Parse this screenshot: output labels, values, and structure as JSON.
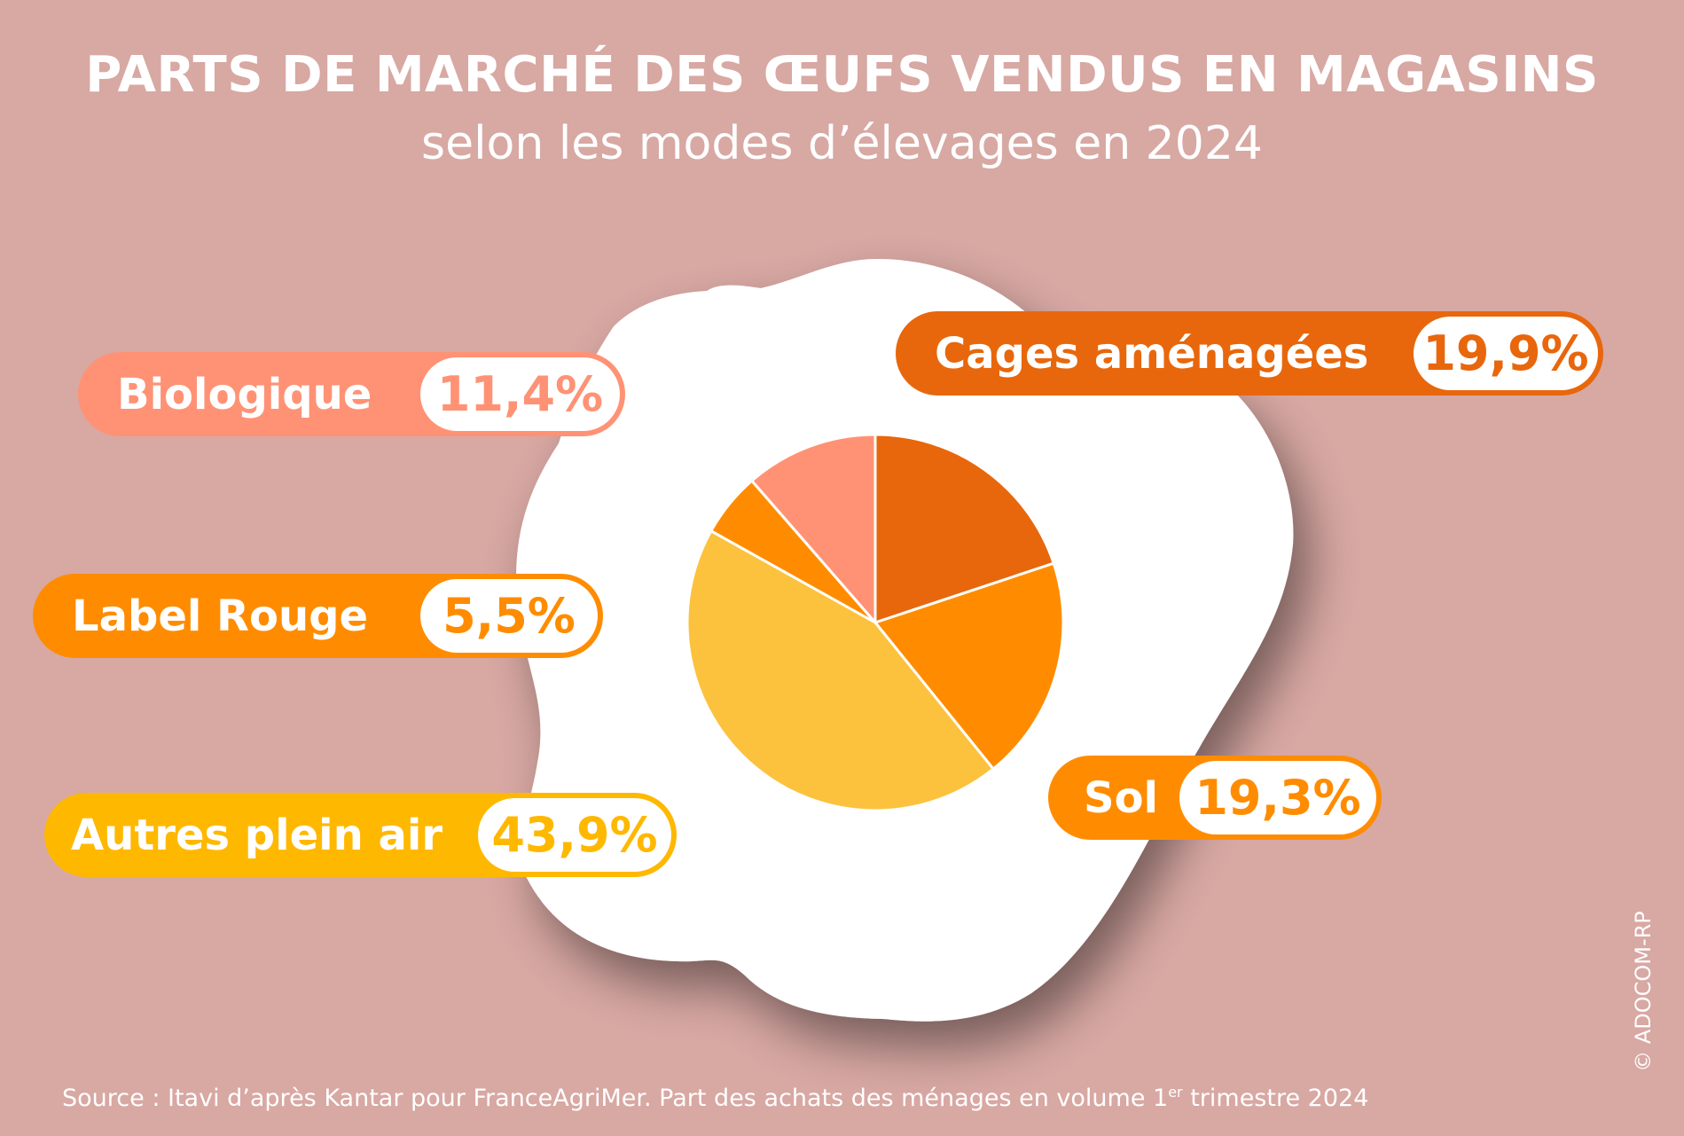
{
  "header": {
    "title": "PARTS DE MARCHÉ DES ŒUFS VENDUS EN MAGASINS",
    "subtitle": "selon les modes d’élevages en 2024"
  },
  "chart_data": {
    "type": "pie",
    "title": "PARTS DE MARCHÉ DES ŒUFS VENDUS EN MAGASINS",
    "subtitle": "selon les modes d’élevages en 2024",
    "unit": "%",
    "slices": [
      {
        "name": "Cages aménagées",
        "value": 19.9,
        "label": "19,9%",
        "color": "#E8670C"
      },
      {
        "name": "Sol",
        "value": 19.3,
        "label": "19,3%",
        "color": "#FF8C00"
      },
      {
        "name": "Autres plein air",
        "value": 43.9,
        "label": "43,9%",
        "color": "#FCC23D"
      },
      {
        "name": "Label Rouge",
        "value": 5.5,
        "label": "5,5%",
        "color": "#FF8C00"
      },
      {
        "name": "Biologique",
        "value": 11.4,
        "label": "11,4%",
        "color": "#FF9275"
      }
    ],
    "legend_placement": "around"
  },
  "labels": {
    "biologique": {
      "name": "Biologique",
      "value": "11,4%",
      "color": "#FF9275",
      "text_color": "#FF9275"
    },
    "cages": {
      "name": "Cages aménagées",
      "value": "19,9%",
      "color": "#E8670C",
      "text_color": "#E8670C"
    },
    "label_rouge": {
      "name": "Label Rouge",
      "value": "5,5%",
      "color": "#FF8C00",
      "text_color": "#FF8C00"
    },
    "sol": {
      "name": "Sol",
      "value": "19,3%",
      "color": "#FF8C00",
      "text_color": "#FF8C00"
    },
    "autres": {
      "name": "Autres plein air",
      "value": "43,9%",
      "color": "#FFB800",
      "text_color": "#FFB800"
    }
  },
  "footer": {
    "source": "Source : Itavi d’après Kantar pour FranceAgriMer. Part des achats des ménages en volume 1",
    "superscript": "er",
    "source_end": " trimestre 2024",
    "copyright": "© ADOCOM-RP"
  },
  "colors": {
    "background": "#D8A8A3",
    "egg_white": "#FFFFFF"
  }
}
